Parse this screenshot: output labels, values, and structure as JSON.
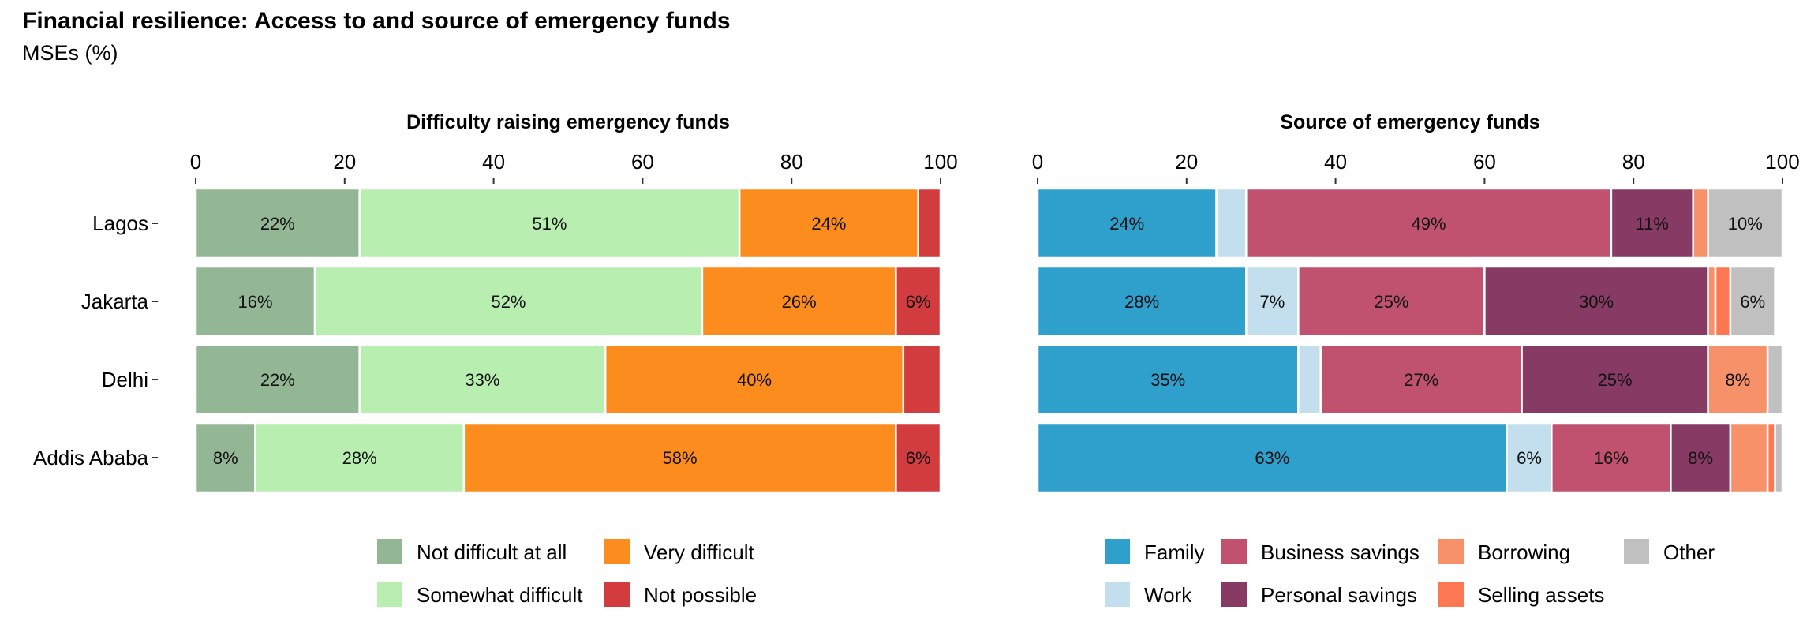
{
  "title": "Financial resilience: Access to and source of emergency funds",
  "subtitle": "MSEs (%)",
  "chart_data": [
    {
      "type": "bar",
      "orientation": "horizontal",
      "stacked": true,
      "title": "Difficulty raising emergency funds",
      "categories": [
        "Lagos",
        "Jakarta",
        "Delhi",
        "Addis Ababa"
      ],
      "xlim": [
        0,
        100
      ],
      "xticks": [
        0,
        20,
        40,
        60,
        80,
        100
      ],
      "legend_position": "bottom",
      "series": [
        {
          "name": "Not difficult at all",
          "color": "#93b794",
          "values": [
            22,
            16,
            22,
            8
          ],
          "labels": [
            "22%",
            "16%",
            "22%",
            "8%"
          ]
        },
        {
          "name": "Somewhat difficult",
          "color": "#b8efb0",
          "values": [
            51,
            52,
            33,
            28
          ],
          "labels": [
            "51%",
            "52%",
            "33%",
            "28%"
          ]
        },
        {
          "name": "Very difficult",
          "color": "#fd8c1e",
          "values": [
            24,
            26,
            40,
            58
          ],
          "labels": [
            "24%",
            "26%",
            "40%",
            "58%"
          ]
        },
        {
          "name": "Not possible",
          "color": "#d33c3e",
          "values": [
            3,
            6,
            5,
            6
          ],
          "labels": [
            "",
            "6%",
            "",
            "6%"
          ]
        }
      ]
    },
    {
      "type": "bar",
      "orientation": "horizontal",
      "stacked": true,
      "title": "Source of emergency funds",
      "categories": [
        "Lagos",
        "Jakarta",
        "Delhi",
        "Addis Ababa"
      ],
      "xlim": [
        0,
        100
      ],
      "xticks": [
        0,
        20,
        40,
        60,
        80,
        100
      ],
      "legend_position": "bottom",
      "series": [
        {
          "name": "Family",
          "color": "#2f9fcb",
          "values": [
            24,
            28,
            35,
            63
          ],
          "labels": [
            "24%",
            "28%",
            "35%",
            "63%"
          ]
        },
        {
          "name": "Work",
          "color": "#c3dfee",
          "values": [
            4,
            7,
            3,
            6
          ],
          "labels": [
            "",
            "7%",
            "",
            "6%"
          ]
        },
        {
          "name": "Business savings",
          "color": "#c0516f",
          "values": [
            49,
            25,
            27,
            16
          ],
          "labels": [
            "49%",
            "25%",
            "27%",
            "16%"
          ]
        },
        {
          "name": "Personal savings",
          "color": "#873a63",
          "values": [
            11,
            30,
            25,
            8
          ],
          "labels": [
            "11%",
            "30%",
            "25%",
            "8%"
          ]
        },
        {
          "name": "Borrowing",
          "color": "#f6916a",
          "values": [
            2,
            1,
            8,
            5
          ],
          "labels": [
            "",
            "",
            "8%",
            ""
          ]
        },
        {
          "name": "Selling assets",
          "color": "#fd7852",
          "values": [
            0,
            2,
            0,
            1
          ],
          "labels": [
            "",
            "",
            "",
            ""
          ]
        },
        {
          "name": "Other",
          "color": "#c0c0c0",
          "values": [
            10,
            6,
            2,
            1
          ],
          "labels": [
            "10%",
            "6%",
            "",
            ""
          ]
        }
      ]
    }
  ]
}
